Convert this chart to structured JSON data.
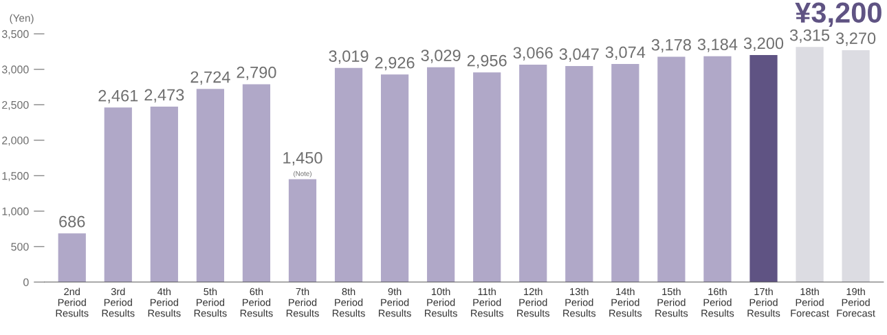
{
  "chart_data": {
    "type": "bar",
    "ylabel": "(Yen)",
    "categories": [
      "2nd\nPeriod\nResults",
      "3rd\nPeriod\nResults",
      "4th\nPeriod\nResults",
      "5th\nPeriod\nResults",
      "6th\nPeriod\nResults",
      "7th\nPeriod\nResults",
      "8th\nPeriod\nResults",
      "9th\nPeriod\nResults",
      "10th\nPeriod\nResults",
      "11th\nPeriod\nResults",
      "12th\nPeriod\nResults",
      "13th\nPeriod\nResults",
      "14th\nPeriod\nResults",
      "15th\nPeriod\nResults",
      "16th\nPeriod\nResults",
      "17th\nPeriod\nResults",
      "18th\nPeriod\nForecast",
      "19th\nPeriod\nForecast"
    ],
    "values": [
      686,
      2461,
      2473,
      2724,
      2790,
      1450,
      3019,
      2926,
      3029,
      2956,
      3066,
      3047,
      3074,
      3178,
      3184,
      3200,
      3315,
      3270
    ],
    "colors": [
      "#b0a8c8",
      "#b0a8c8",
      "#b0a8c8",
      "#b0a8c8",
      "#b0a8c8",
      "#b0a8c8",
      "#b0a8c8",
      "#b0a8c8",
      "#b0a8c8",
      "#b0a8c8",
      "#b0a8c8",
      "#b0a8c8",
      "#b0a8c8",
      "#b0a8c8",
      "#b0a8c8",
      "#5f5383",
      "#dcdce2",
      "#dcdce2"
    ],
    "value_labels": [
      "686",
      "2,461",
      "2,473",
      "2,724",
      "2,790",
      "1,450",
      "3,019",
      "2,926",
      "3,029",
      "2,956",
      "3,066",
      "3,047",
      "3,074",
      "3,178",
      "3,184",
      "3,200",
      "3,315",
      "3,270"
    ],
    "ylim": [
      0,
      3500
    ],
    "yticks": [
      {
        "value": 0,
        "label": "0"
      },
      {
        "value": 500,
        "label": "500"
      },
      {
        "value": 1000,
        "label": "1,000"
      },
      {
        "value": 1500,
        "label": "1,500"
      },
      {
        "value": 2000,
        "label": "2,000"
      },
      {
        "value": 2500,
        "label": "2,500"
      },
      {
        "value": 3000,
        "label": "3,000"
      },
      {
        "value": 3500,
        "label": "3,500"
      }
    ],
    "annotations": [
      {
        "text": "(Note)",
        "x": "7th\nPeriod\nResults",
        "y": 1450
      },
      "¥3,200"
    ],
    "grid": false,
    "legend": false
  }
}
